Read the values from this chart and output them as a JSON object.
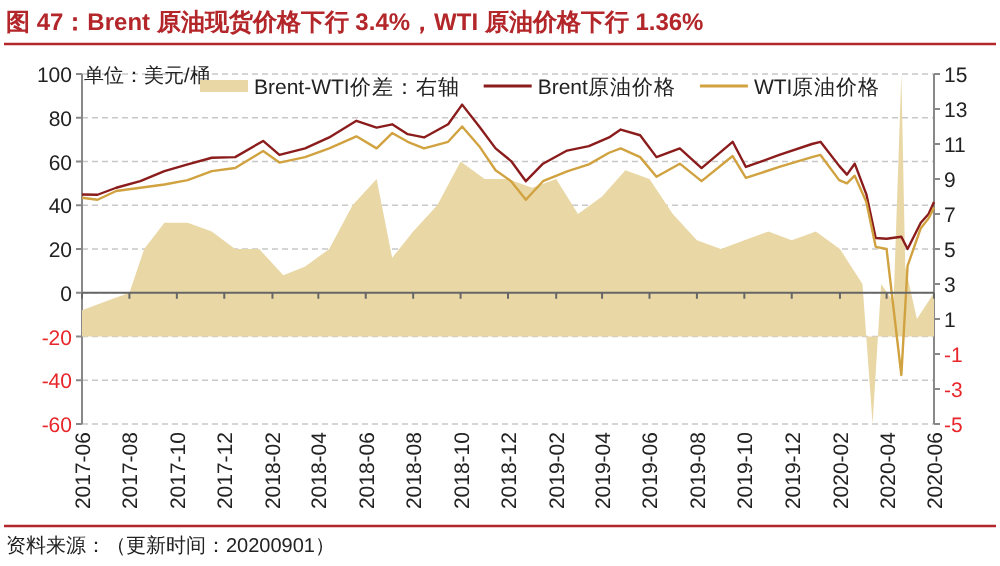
{
  "chart_data": {
    "type": "line",
    "title": "图 47：Brent 原油现货价格下行 3.4%，WTI 原油价格下行 1.36%",
    "ylabel": "单位：美元/桶",
    "annotations": [
      "资料来源：（更新时间：20200901）"
    ],
    "legend": "top",
    "grid": "y",
    "xlim": [
      "2017-06",
      "2020-06"
    ],
    "xticks": [
      "2017-06",
      "2017-08",
      "2017-10",
      "2017-12",
      "2018-02",
      "2018-04",
      "2018-06",
      "2018-08",
      "2018-10",
      "2018-12",
      "2019-02",
      "2019-04",
      "2019-06",
      "2019-08",
      "2019-10",
      "2019-12",
      "2020-02",
      "2020-04",
      "2020-06"
    ],
    "ylim": [
      -60,
      100
    ],
    "yticks": [
      -60,
      -40,
      -20,
      0,
      20,
      40,
      60,
      80,
      100
    ],
    "y2lim": [
      -5,
      15
    ],
    "y2ticks": [
      -5,
      -3,
      -1,
      1,
      3,
      5,
      7,
      9,
      11,
      13,
      15
    ],
    "series": [
      {
        "name": "Brent-WTI价差：右轴",
        "type": "area",
        "axis": "y2",
        "color": "#e9d8a6",
        "x": [
          "2017-06-01",
          "2017-07-01",
          "2017-08-01",
          "2017-08-20",
          "2017-09-15",
          "2017-10-15",
          "2017-11-15",
          "2017-12-15",
          "2018-01-15",
          "2018-02-15",
          "2018-03-15",
          "2018-04-15",
          "2018-05-15",
          "2018-06-15",
          "2018-07-05",
          "2018-08-01",
          "2018-09-01",
          "2018-10-01",
          "2018-11-01",
          "2018-12-01",
          "2019-01-01",
          "2019-02-01",
          "2019-03-01",
          "2019-04-01",
          "2019-05-01",
          "2019-06-01",
          "2019-07-01",
          "2019-08-01",
          "2019-09-01",
          "2019-10-01",
          "2019-11-01",
          "2019-12-01",
          "2020-01-01",
          "2020-02-01",
          "2020-03-01",
          "2020-03-14",
          "2020-03-25",
          "2020-04-10",
          "2020-04-20",
          "2020-04-25",
          "2020-05-10",
          "2020-06-01"
        ],
        "values": [
          1.5,
          2,
          2.5,
          5,
          6.5,
          6.5,
          6,
          5,
          5,
          3.5,
          4,
          5,
          7.5,
          9,
          4.5,
          6,
          7.5,
          10,
          9,
          9,
          8.5,
          9,
          7,
          8,
          9.5,
          9,
          7,
          5.5,
          5,
          5.5,
          6,
          5.5,
          6,
          5,
          3,
          -5,
          3,
          2,
          15,
          4,
          1,
          2.5
        ]
      },
      {
        "name": "Brent原油价格",
        "color": "#8b1c1c",
        "x": [
          "2017-06-01",
          "2017-06-21",
          "2017-07-15",
          "2017-08-15",
          "2017-09-15",
          "2017-10-15",
          "2017-11-15",
          "2017-12-15",
          "2018-01-20",
          "2018-02-10",
          "2018-03-15",
          "2018-04-15",
          "2018-05-20",
          "2018-06-15",
          "2018-07-05",
          "2018-07-25",
          "2018-08-15",
          "2018-09-15",
          "2018-10-03",
          "2018-10-25",
          "2018-11-15",
          "2018-12-05",
          "2018-12-24",
          "2019-01-15",
          "2019-02-15",
          "2019-03-15",
          "2019-04-10",
          "2019-04-25",
          "2019-05-20",
          "2019-06-10",
          "2019-07-10",
          "2019-08-07",
          "2019-09-16",
          "2019-10-03",
          "2019-11-15",
          "2019-12-27",
          "2020-01-07",
          "2020-01-31",
          "2020-02-10",
          "2020-02-20",
          "2020-03-06",
          "2020-03-18",
          "2020-04-01",
          "2020-04-20",
          "2020-04-28",
          "2020-05-15",
          "2020-05-25",
          "2020-06-01"
        ],
        "values": [
          44.9,
          44.8,
          48,
          51,
          55.6,
          58.7,
          61.7,
          62,
          69.4,
          63,
          66,
          71,
          78.6,
          75.5,
          77,
          72.5,
          71,
          77,
          86,
          76,
          66,
          60.2,
          51,
          59,
          65,
          67,
          71,
          74.6,
          72,
          62,
          66,
          57,
          69,
          57.5,
          63,
          68,
          69,
          58,
          54,
          59,
          45,
          25,
          24.7,
          25.6,
          20,
          32,
          36,
          41.5
        ]
      },
      {
        "name": "WTI原油价格",
        "color": "#d1a240",
        "x": [
          "2017-06-01",
          "2017-06-21",
          "2017-07-15",
          "2017-08-15",
          "2017-09-15",
          "2017-10-15",
          "2017-11-15",
          "2017-12-15",
          "2018-01-20",
          "2018-02-10",
          "2018-03-15",
          "2018-04-15",
          "2018-05-20",
          "2018-06-15",
          "2018-07-05",
          "2018-07-25",
          "2018-08-15",
          "2018-09-15",
          "2018-10-03",
          "2018-10-25",
          "2018-11-15",
          "2018-12-05",
          "2018-12-24",
          "2019-01-15",
          "2019-02-15",
          "2019-03-15",
          "2019-04-10",
          "2019-04-25",
          "2019-05-20",
          "2019-06-10",
          "2019-07-10",
          "2019-08-07",
          "2019-09-16",
          "2019-10-03",
          "2019-11-15",
          "2019-12-27",
          "2020-01-07",
          "2020-01-31",
          "2020-02-10",
          "2020-02-20",
          "2020-03-06",
          "2020-03-18",
          "2020-04-01",
          "2020-04-20",
          "2020-04-28",
          "2020-05-15",
          "2020-05-25",
          "2020-06-01"
        ],
        "values": [
          43.4,
          42.5,
          46.5,
          48,
          49.5,
          51.5,
          55.6,
          57,
          64.8,
          59.5,
          62,
          66,
          71.5,
          66,
          73,
          69,
          66,
          69,
          76,
          67,
          56,
          51,
          42.5,
          51,
          55.5,
          58.7,
          64,
          66,
          62,
          53,
          59,
          51,
          62.5,
          52.5,
          57.5,
          62,
          63,
          51.5,
          50,
          53.5,
          41.5,
          21,
          20,
          -37.6,
          12.3,
          29.5,
          34,
          39
        ]
      }
    ]
  }
}
